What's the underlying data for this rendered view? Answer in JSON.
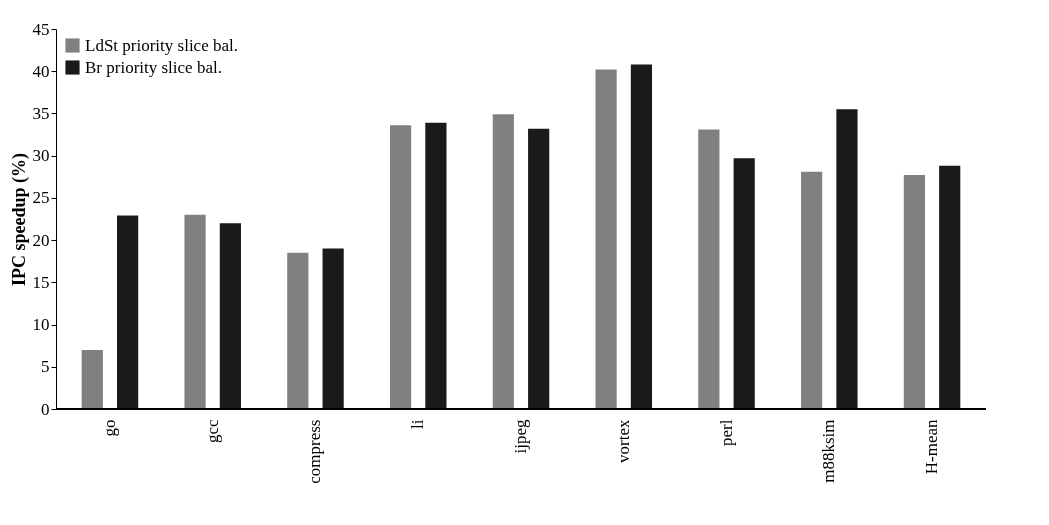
{
  "chart_data": {
    "type": "bar",
    "ylabel": "IPC speedup (%)",
    "categories": [
      "go",
      "gcc",
      "compress",
      "li",
      "ijpeg",
      "vortex",
      "perl",
      "m88ksim",
      "H-mean"
    ],
    "series": [
      {
        "name": "LdSt priority slice bal.",
        "color": "#808080",
        "values": [
          7,
          23,
          18.5,
          33.6,
          34.9,
          40.2,
          33.1,
          28.1,
          27.7
        ]
      },
      {
        "name": "Br priority slice bal.",
        "color": "#1a1a1a",
        "values": [
          22.9,
          22,
          19,
          33.9,
          33.2,
          40.8,
          29.7,
          35.5,
          28.8
        ]
      }
    ],
    "ylim": [
      0,
      45
    ],
    "yticks": [
      0,
      5,
      10,
      15,
      20,
      25,
      30,
      35,
      40,
      45
    ],
    "grid": false,
    "legend": "top left"
  }
}
